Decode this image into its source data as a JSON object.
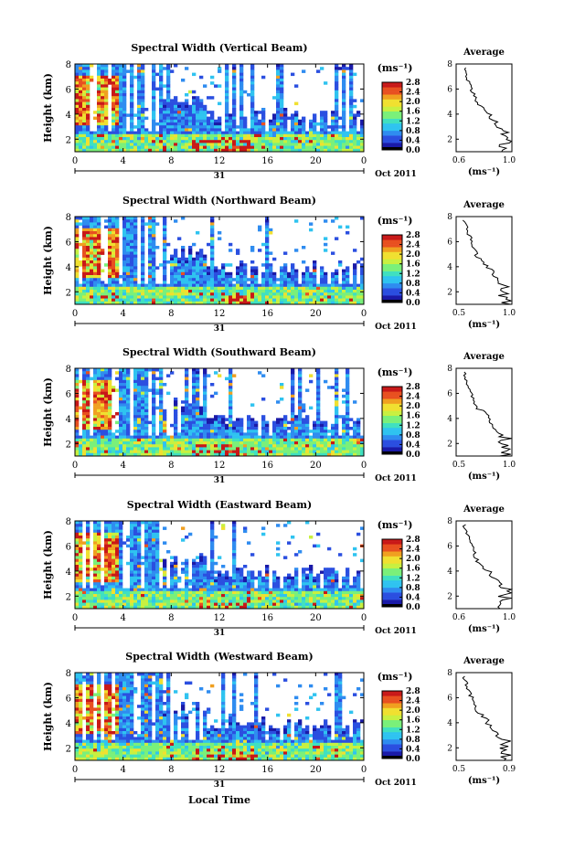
{
  "figure": {
    "xlabel": "Local Time",
    "date_label": "Oct 2011",
    "day_label": "31",
    "colorbar_unit": "(ms⁻¹)",
    "avg_title": "Average",
    "avg_xunit": "(ms⁻¹)",
    "colorbar_ticks": [
      "0.0",
      "0.4",
      "0.8",
      "1.2",
      "1.6",
      "2.0",
      "2.4",
      "2.8"
    ],
    "colormap": [
      "#1a1aa8",
      "#2b4fe0",
      "#2f8cf0",
      "#2fc3f0",
      "#40e0c0",
      "#7af07a",
      "#c8f040",
      "#f0e030",
      "#f0a020",
      "#e85020",
      "#c81818"
    ]
  },
  "chart_data": [
    {
      "type": "heatmap",
      "title": "Spectral Width (Vertical Beam)",
      "ylabel": "Height (km)",
      "xlim": [
        0,
        24
      ],
      "xticks": [
        "0",
        "4",
        "8",
        "12",
        "16",
        "20",
        "0"
      ],
      "ylim": [
        1,
        8
      ],
      "yticks": [
        "2",
        "4",
        "6",
        "8"
      ],
      "colorbar_range": [
        0.0,
        2.8
      ],
      "profile": {
        "xlim": [
          0.6,
          1.0
        ],
        "xticks": [
          "0.6",
          "1.0"
        ],
        "ylim": [
          1,
          8
        ],
        "yticks": [
          "2",
          "4",
          "6",
          "8"
        ]
      }
    },
    {
      "type": "heatmap",
      "title": "Spectral Width (Northward Beam)",
      "ylabel": "Height (km)",
      "xlim": [
        0,
        24
      ],
      "xticks": [
        "0",
        "4",
        "8",
        "12",
        "16",
        "20",
        "0"
      ],
      "ylim": [
        1,
        8
      ],
      "yticks": [
        "2",
        "4",
        "6",
        "8"
      ],
      "colorbar_range": [
        0.0,
        2.8
      ],
      "profile": {
        "xlim": [
          0.5,
          1.0
        ],
        "xticks": [
          "0.5",
          "1.0"
        ],
        "ylim": [
          1,
          8
        ],
        "yticks": [
          "2",
          "4",
          "6",
          "8"
        ]
      }
    },
    {
      "type": "heatmap",
      "title": "Spectral Width (Southward Beam)",
      "ylabel": "Height (km)",
      "xlim": [
        0,
        24
      ],
      "xticks": [
        "0",
        "4",
        "8",
        "12",
        "16",
        "20",
        "0"
      ],
      "ylim": [
        1,
        8
      ],
      "yticks": [
        "2",
        "4",
        "6",
        "8"
      ],
      "colorbar_range": [
        0.0,
        2.8
      ],
      "profile": {
        "xlim": [
          0.5,
          1.0
        ],
        "xticks": [
          "0.5",
          "1.0"
        ],
        "ylim": [
          1,
          8
        ],
        "yticks": [
          "2",
          "4",
          "6",
          "8"
        ]
      }
    },
    {
      "type": "heatmap",
      "title": "Spectral Width (Eastward Beam)",
      "ylabel": "Height (km)",
      "xlim": [
        0,
        24
      ],
      "xticks": [
        "0",
        "4",
        "8",
        "12",
        "16",
        "20",
        "0"
      ],
      "ylim": [
        1,
        8
      ],
      "yticks": [
        "2",
        "4",
        "6",
        "8"
      ],
      "colorbar_range": [
        0.0,
        2.8
      ],
      "profile": {
        "xlim": [
          0.6,
          1.0
        ],
        "xticks": [
          "0.6",
          "1.0"
        ],
        "ylim": [
          1,
          8
        ],
        "yticks": [
          "2",
          "4",
          "6",
          "8"
        ]
      }
    },
    {
      "type": "heatmap",
      "title": "Spectral Width (Westward Beam)",
      "ylabel": "Height (km)",
      "xlim": [
        0,
        24
      ],
      "xticks": [
        "0",
        "4",
        "8",
        "12",
        "16",
        "20",
        "0"
      ],
      "ylim": [
        1,
        8
      ],
      "yticks": [
        "2",
        "4",
        "6",
        "8"
      ],
      "colorbar_range": [
        0.0,
        2.8
      ],
      "profile": {
        "xlim": [
          0.5,
          0.9
        ],
        "xticks": [
          "0.5",
          "0.9"
        ],
        "ylim": [
          1,
          8
        ],
        "yticks": [
          "2",
          "4",
          "6",
          "8"
        ]
      }
    }
  ]
}
